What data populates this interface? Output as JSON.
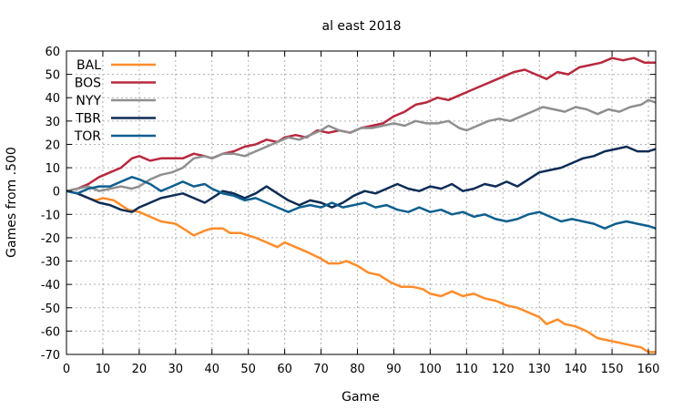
{
  "chart_data": {
    "type": "line",
    "title": "al east 2018",
    "xlabel": "Game",
    "ylabel": "Games from .500",
    "xlim": [
      0,
      162
    ],
    "ylim": [
      -70,
      60
    ],
    "xticks": [
      0,
      10,
      20,
      30,
      40,
      50,
      60,
      70,
      80,
      90,
      100,
      110,
      120,
      130,
      140,
      150,
      160
    ],
    "yticks": [
      -70,
      -60,
      -50,
      -40,
      -30,
      -20,
      -10,
      0,
      10,
      20,
      30,
      40,
      50,
      60
    ],
    "grid": true,
    "legend_position": "top-left",
    "series": [
      {
        "name": "BAL",
        "color": "#ff8c2a",
        "points": [
          [
            0,
            0
          ],
          [
            3,
            -1
          ],
          [
            6,
            -3
          ],
          [
            8,
            -4
          ],
          [
            10,
            -3
          ],
          [
            13,
            -4
          ],
          [
            15,
            -6
          ],
          [
            17,
            -8
          ],
          [
            20,
            -9
          ],
          [
            23,
            -11
          ],
          [
            26,
            -13
          ],
          [
            30,
            -14
          ],
          [
            33,
            -17
          ],
          [
            35,
            -19
          ],
          [
            38,
            -17
          ],
          [
            40,
            -16
          ],
          [
            43,
            -16
          ],
          [
            45,
            -18
          ],
          [
            48,
            -18
          ],
          [
            50,
            -19
          ],
          [
            52,
            -20
          ],
          [
            55,
            -22
          ],
          [
            58,
            -24
          ],
          [
            60,
            -22
          ],
          [
            63,
            -24
          ],
          [
            66,
            -26
          ],
          [
            70,
            -29
          ],
          [
            72,
            -31
          ],
          [
            75,
            -31
          ],
          [
            77,
            -30
          ],
          [
            80,
            -32
          ],
          [
            83,
            -35
          ],
          [
            86,
            -36
          ],
          [
            89,
            -39
          ],
          [
            92,
            -41
          ],
          [
            95,
            -41
          ],
          [
            98,
            -42
          ],
          [
            100,
            -44
          ],
          [
            103,
            -45
          ],
          [
            106,
            -43
          ],
          [
            109,
            -45
          ],
          [
            112,
            -44
          ],
          [
            115,
            -46
          ],
          [
            118,
            -47
          ],
          [
            121,
            -49
          ],
          [
            124,
            -50
          ],
          [
            127,
            -52
          ],
          [
            130,
            -54
          ],
          [
            132,
            -57
          ],
          [
            135,
            -55
          ],
          [
            137,
            -57
          ],
          [
            140,
            -58
          ],
          [
            143,
            -60
          ],
          [
            146,
            -63
          ],
          [
            149,
            -64
          ],
          [
            152,
            -65
          ],
          [
            155,
            -66
          ],
          [
            158,
            -67
          ],
          [
            160,
            -69
          ],
          [
            162,
            -69
          ]
        ]
      },
      {
        "name": "BOS",
        "color": "#b8293f",
        "points": [
          [
            0,
            0
          ],
          [
            3,
            1
          ],
          [
            6,
            3
          ],
          [
            9,
            6
          ],
          [
            12,
            8
          ],
          [
            15,
            10
          ],
          [
            18,
            14
          ],
          [
            20,
            15
          ],
          [
            23,
            13
          ],
          [
            26,
            14
          ],
          [
            29,
            14
          ],
          [
            32,
            14
          ],
          [
            35,
            16
          ],
          [
            38,
            15
          ],
          [
            40,
            14
          ],
          [
            43,
            16
          ],
          [
            46,
            17
          ],
          [
            49,
            19
          ],
          [
            52,
            20
          ],
          [
            55,
            22
          ],
          [
            58,
            21
          ],
          [
            60,
            23
          ],
          [
            63,
            24
          ],
          [
            66,
            23
          ],
          [
            69,
            26
          ],
          [
            72,
            25
          ],
          [
            75,
            26
          ],
          [
            78,
            25
          ],
          [
            81,
            27
          ],
          [
            84,
            28
          ],
          [
            87,
            29
          ],
          [
            90,
            32
          ],
          [
            93,
            34
          ],
          [
            96,
            37
          ],
          [
            99,
            38
          ],
          [
            102,
            40
          ],
          [
            105,
            39
          ],
          [
            108,
            41
          ],
          [
            111,
            43
          ],
          [
            114,
            45
          ],
          [
            117,
            47
          ],
          [
            120,
            49
          ],
          [
            123,
            51
          ],
          [
            126,
            52
          ],
          [
            129,
            50
          ],
          [
            132,
            48
          ],
          [
            135,
            51
          ],
          [
            138,
            50
          ],
          [
            141,
            53
          ],
          [
            144,
            54
          ],
          [
            147,
            55
          ],
          [
            150,
            57
          ],
          [
            153,
            56
          ],
          [
            156,
            57
          ],
          [
            159,
            55
          ],
          [
            162,
            55
          ]
        ]
      },
      {
        "name": "NYY",
        "color": "#8f8f8f",
        "points": [
          [
            0,
            0
          ],
          [
            3,
            1
          ],
          [
            6,
            2
          ],
          [
            9,
            0
          ],
          [
            12,
            1
          ],
          [
            15,
            2
          ],
          [
            18,
            1
          ],
          [
            20,
            2
          ],
          [
            23,
            5
          ],
          [
            26,
            7
          ],
          [
            29,
            8
          ],
          [
            32,
            10
          ],
          [
            35,
            14
          ],
          [
            38,
            15
          ],
          [
            40,
            14
          ],
          [
            43,
            16
          ],
          [
            46,
            16
          ],
          [
            49,
            15
          ],
          [
            52,
            17
          ],
          [
            55,
            19
          ],
          [
            58,
            21
          ],
          [
            61,
            23
          ],
          [
            64,
            22
          ],
          [
            67,
            24
          ],
          [
            70,
            26
          ],
          [
            72,
            28
          ],
          [
            75,
            26
          ],
          [
            78,
            25
          ],
          [
            81,
            27
          ],
          [
            84,
            27
          ],
          [
            87,
            28
          ],
          [
            90,
            29
          ],
          [
            93,
            28
          ],
          [
            96,
            30
          ],
          [
            99,
            29
          ],
          [
            102,
            29
          ],
          [
            105,
            30
          ],
          [
            108,
            27
          ],
          [
            110,
            26
          ],
          [
            113,
            28
          ],
          [
            116,
            30
          ],
          [
            119,
            31
          ],
          [
            122,
            30
          ],
          [
            125,
            32
          ],
          [
            128,
            34
          ],
          [
            131,
            36
          ],
          [
            134,
            35
          ],
          [
            137,
            34
          ],
          [
            140,
            36
          ],
          [
            143,
            35
          ],
          [
            146,
            33
          ],
          [
            149,
            35
          ],
          [
            152,
            34
          ],
          [
            155,
            36
          ],
          [
            158,
            37
          ],
          [
            160,
            39
          ],
          [
            162,
            38
          ]
        ]
      },
      {
        "name": "TBR",
        "color": "#0d2c55",
        "points": [
          [
            0,
            0
          ],
          [
            3,
            -1
          ],
          [
            6,
            -3
          ],
          [
            9,
            -5
          ],
          [
            12,
            -6
          ],
          [
            15,
            -8
          ],
          [
            18,
            -9
          ],
          [
            20,
            -7
          ],
          [
            23,
            -5
          ],
          [
            26,
            -3
          ],
          [
            29,
            -2
          ],
          [
            32,
            -1
          ],
          [
            35,
            -3
          ],
          [
            38,
            -5
          ],
          [
            40,
            -3
          ],
          [
            43,
            0
          ],
          [
            46,
            -1
          ],
          [
            49,
            -3
          ],
          [
            52,
            -1
          ],
          [
            55,
            2
          ],
          [
            58,
            -1
          ],
          [
            61,
            -4
          ],
          [
            64,
            -6
          ],
          [
            67,
            -4
          ],
          [
            70,
            -5
          ],
          [
            73,
            -7
          ],
          [
            76,
            -5
          ],
          [
            79,
            -2
          ],
          [
            82,
            0
          ],
          [
            85,
            -1
          ],
          [
            88,
            1
          ],
          [
            91,
            3
          ],
          [
            94,
            1
          ],
          [
            97,
            0
          ],
          [
            100,
            2
          ],
          [
            103,
            1
          ],
          [
            106,
            3
          ],
          [
            109,
            0
          ],
          [
            112,
            1
          ],
          [
            115,
            3
          ],
          [
            118,
            2
          ],
          [
            121,
            4
          ],
          [
            124,
            2
          ],
          [
            127,
            5
          ],
          [
            130,
            8
          ],
          [
            133,
            9
          ],
          [
            136,
            10
          ],
          [
            139,
            12
          ],
          [
            142,
            14
          ],
          [
            145,
            15
          ],
          [
            148,
            17
          ],
          [
            151,
            18
          ],
          [
            154,
            19
          ],
          [
            157,
            17
          ],
          [
            160,
            17
          ],
          [
            162,
            18
          ]
        ]
      },
      {
        "name": "TOR",
        "color": "#0e5f8f",
        "points": [
          [
            0,
            0
          ],
          [
            3,
            -1
          ],
          [
            6,
            1
          ],
          [
            9,
            2
          ],
          [
            12,
            2
          ],
          [
            15,
            4
          ],
          [
            18,
            6
          ],
          [
            20,
            5
          ],
          [
            23,
            3
          ],
          [
            26,
            0
          ],
          [
            29,
            2
          ],
          [
            32,
            4
          ],
          [
            35,
            2
          ],
          [
            38,
            3
          ],
          [
            40,
            1
          ],
          [
            43,
            -1
          ],
          [
            46,
            -2
          ],
          [
            49,
            -4
          ],
          [
            52,
            -3
          ],
          [
            55,
            -5
          ],
          [
            58,
            -7
          ],
          [
            61,
            -9
          ],
          [
            64,
            -7
          ],
          [
            67,
            -6
          ],
          [
            70,
            -7
          ],
          [
            73,
            -5
          ],
          [
            76,
            -7
          ],
          [
            79,
            -6
          ],
          [
            82,
            -5
          ],
          [
            85,
            -7
          ],
          [
            88,
            -6
          ],
          [
            91,
            -8
          ],
          [
            94,
            -9
          ],
          [
            97,
            -7
          ],
          [
            100,
            -9
          ],
          [
            103,
            -8
          ],
          [
            106,
            -10
          ],
          [
            109,
            -9
          ],
          [
            112,
            -11
          ],
          [
            115,
            -10
          ],
          [
            118,
            -12
          ],
          [
            121,
            -13
          ],
          [
            124,
            -12
          ],
          [
            127,
            -10
          ],
          [
            130,
            -9
          ],
          [
            133,
            -11
          ],
          [
            136,
            -13
          ],
          [
            139,
            -12
          ],
          [
            142,
            -13
          ],
          [
            145,
            -14
          ],
          [
            148,
            -16
          ],
          [
            151,
            -14
          ],
          [
            154,
            -13
          ],
          [
            157,
            -14
          ],
          [
            160,
            -15
          ],
          [
            162,
            -16
          ]
        ]
      }
    ]
  }
}
